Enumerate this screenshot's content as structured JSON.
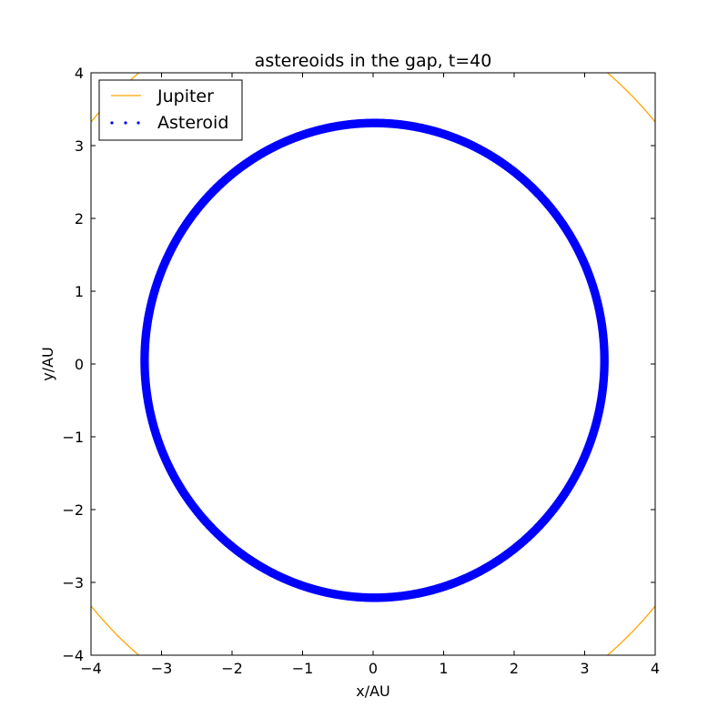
{
  "chart_data": {
    "type": "scatter",
    "title": "astereoids in the gap, t=40",
    "xlabel": "x/AU",
    "ylabel": "y/AU",
    "xlim": [
      -4,
      4
    ],
    "ylim": [
      -4,
      4
    ],
    "xticks": [
      -4,
      -3,
      -2,
      -1,
      0,
      1,
      2,
      3,
      4
    ],
    "yticks": [
      -4,
      -3,
      -2,
      -1,
      0,
      1,
      2,
      3,
      4
    ],
    "xtick_labels": [
      "−4",
      "−3",
      "−2",
      "−1",
      "0",
      "1",
      "2",
      "3",
      "4"
    ],
    "ytick_labels": [
      "−4",
      "−3",
      "−2",
      "−1",
      "0",
      "1",
      "2",
      "3",
      "4"
    ],
    "grid": false,
    "legend_position": "top-left",
    "series": [
      {
        "name": "Jupiter",
        "kind": "line",
        "color": "#ffa500",
        "orbit_radius": 5.2
      },
      {
        "name": "Asteroid",
        "kind": "points",
        "color": "#0000ff",
        "orbit_center": [
          0.02,
          0.05
        ],
        "orbit_radius_range": [
          3.22,
          3.3
        ]
      }
    ]
  }
}
